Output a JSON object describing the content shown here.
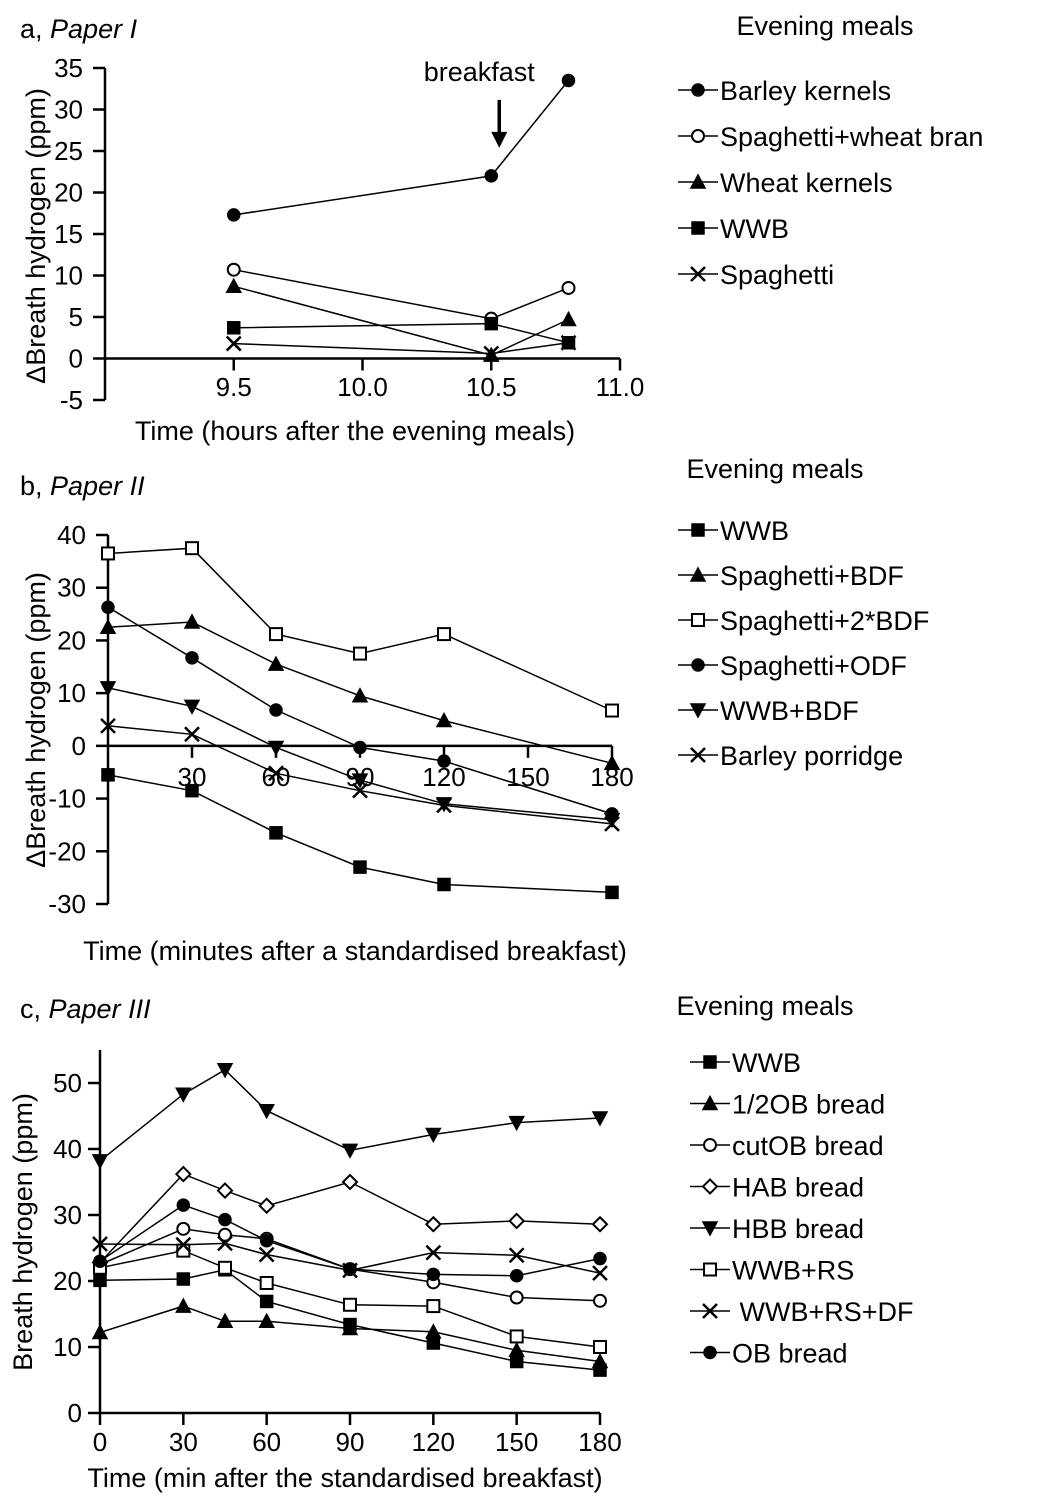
{
  "chart_data": [
    {
      "type": "line",
      "panel_label": "a, ",
      "title": "Paper I",
      "legend_title": "Evening meals",
      "xlabel": "Time (hours after the evening meals)",
      "ylabel": "ΔBreath hydrogen (ppm)",
      "xlim": [
        9.0,
        11.0
      ],
      "ylim": [
        -5,
        35
      ],
      "xticks": [
        9.5,
        10.0,
        10.5,
        11.0
      ],
      "xtick_labels": [
        "9.5",
        "10.0",
        "10.5",
        "11.0"
      ],
      "yticks": [
        -5,
        0,
        5,
        10,
        15,
        20,
        25,
        30,
        35
      ],
      "ytick_labels": [
        "-5",
        "0",
        "5",
        "10",
        "15",
        "20",
        "25",
        "30",
        "35"
      ],
      "x_axis_at_zero": true,
      "annotations": [
        {
          "text": "breakfast",
          "x": 10.5,
          "y": 22
        }
      ],
      "series": [
        {
          "name": "Barley kernels",
          "marker": "circle-filled",
          "x": [
            9.5,
            10.5,
            10.8
          ],
          "y": [
            17.3,
            22.0,
            33.5
          ]
        },
        {
          "name": "Spaghetti+wheat bran",
          "marker": "circle-open",
          "x": [
            9.5,
            10.5,
            10.8
          ],
          "y": [
            10.7,
            4.8,
            8.5
          ]
        },
        {
          "name": "Wheat kernels",
          "marker": "triangle-up-filled",
          "x": [
            9.5,
            10.5,
            10.8
          ],
          "y": [
            8.7,
            0.4,
            4.7
          ]
        },
        {
          "name": "WWB",
          "marker": "square-filled",
          "x": [
            9.5,
            10.5,
            10.8
          ],
          "y": [
            3.7,
            4.2,
            1.9
          ]
        },
        {
          "name": "Spaghetti",
          "marker": "cross",
          "x": [
            9.5,
            10.5,
            10.8
          ],
          "y": [
            1.8,
            0.6,
            1.9
          ]
        }
      ]
    },
    {
      "type": "line",
      "panel_label": "b, ",
      "title": "Paper II",
      "legend_title": "Evening meals",
      "xlabel": "Time (minutes after a standardised breakfast)",
      "ylabel": "ΔBreath hydrogen (ppm)",
      "xlim": [
        0,
        180
      ],
      "ylim": [
        -30,
        40
      ],
      "xticks": [
        30,
        60,
        90,
        120,
        150,
        180
      ],
      "xtick_labels": [
        "30",
        "60",
        "90",
        "120",
        "150",
        "180"
      ],
      "yticks": [
        -30,
        -20,
        -10,
        0,
        10,
        20,
        30,
        40
      ],
      "ytick_labels": [
        "-30",
        "-20",
        "-10",
        "0",
        "10",
        "20",
        "30",
        "40"
      ],
      "x_axis_at_zero": true,
      "series": [
        {
          "name": "WWB",
          "marker": "square-filled",
          "x": [
            0,
            30,
            60,
            90,
            120,
            180
          ],
          "y": [
            -5.5,
            -8.5,
            -16.5,
            -23.0,
            -26.3,
            -27.8
          ]
        },
        {
          "name": "Spaghetti+BDF",
          "marker": "triangle-up-filled",
          "x": [
            0,
            30,
            60,
            90,
            120,
            180
          ],
          "y": [
            22.5,
            23.5,
            15.5,
            9.5,
            4.8,
            -3.3
          ]
        },
        {
          "name": "Spaghetti+2*BDF",
          "marker": "square-open",
          "x": [
            0,
            30,
            60,
            90,
            120,
            180
          ],
          "y": [
            36.5,
            37.5,
            21.2,
            17.5,
            21.2,
            6.7
          ]
        },
        {
          "name": "Spaghetti+ODF",
          "marker": "circle-filled",
          "x": [
            0,
            30,
            60,
            90,
            120,
            180
          ],
          "y": [
            26.3,
            16.7,
            6.8,
            -0.3,
            -2.9,
            -12.9
          ]
        },
        {
          "name": "WWB+BDF",
          "marker": "triangle-down-filled",
          "x": [
            0,
            30,
            60,
            90,
            120,
            180
          ],
          "y": [
            11.0,
            7.5,
            -0.3,
            -6.5,
            -11.0,
            -14.0
          ]
        },
        {
          "name": "Barley porridge",
          "marker": "cross",
          "x": [
            0,
            30,
            60,
            90,
            120,
            180
          ],
          "y": [
            3.8,
            2.2,
            -5.2,
            -8.5,
            -11.3,
            -14.8
          ]
        }
      ]
    },
    {
      "type": "line",
      "panel_label": "c, ",
      "title": "Paper III",
      "legend_title": "Evening meals",
      "xlabel": "Time (min after the standardised breakfast)",
      "ylabel": "Breath hydrogen (ppm)",
      "xlim": [
        0,
        180
      ],
      "ylim": [
        0,
        55
      ],
      "xticks": [
        0,
        30,
        60,
        90,
        120,
        150,
        180
      ],
      "xtick_labels": [
        "0",
        "30",
        "60",
        "90",
        "120",
        "150",
        "180"
      ],
      "yticks": [
        0,
        10,
        20,
        30,
        40,
        50
      ],
      "ytick_labels": [
        "0",
        "10",
        "20",
        "30",
        "40",
        "50"
      ],
      "x_axis_at_zero": true,
      "series": [
        {
          "name": "WWB",
          "marker": "square-filled",
          "x": [
            0,
            30,
            45,
            60,
            90,
            120,
            150,
            180
          ],
          "y": [
            20.1,
            20.3,
            21.7,
            16.9,
            13.4,
            10.6,
            7.8,
            6.5
          ]
        },
        {
          "name": "1/2OB bread",
          "marker": "triangle-up-filled",
          "x": [
            0,
            30,
            45,
            60,
            90,
            120,
            150,
            180
          ],
          "y": [
            12.2,
            16.2,
            13.9,
            13.9,
            12.8,
            12.3,
            9.5,
            7.8
          ]
        },
        {
          "name": "cutOB bread",
          "marker": "circle-open",
          "x": [
            0,
            30,
            45,
            60,
            90,
            120,
            150,
            180
          ],
          "y": [
            22.5,
            27.9,
            27.0,
            26.4,
            21.8,
            19.8,
            17.5,
            17.0
          ]
        },
        {
          "name": "HAB bread",
          "marker": "diamond-open",
          "x": [
            0,
            30,
            45,
            60,
            90,
            120,
            150,
            180
          ],
          "y": [
            22.8,
            36.2,
            33.7,
            31.4,
            35.0,
            28.6,
            29.1,
            28.6
          ]
        },
        {
          "name": "HBB bread",
          "marker": "triangle-down-filled",
          "x": [
            0,
            30,
            45,
            60,
            90,
            120,
            150,
            180
          ],
          "y": [
            38.2,
            48.3,
            52.0,
            45.8,
            39.8,
            42.2,
            44.0,
            44.7
          ]
        },
        {
          "name": "WWB+RS",
          "marker": "square-open",
          "x": [
            0,
            30,
            45,
            60,
            90,
            120,
            150,
            180
          ],
          "y": [
            22.0,
            24.6,
            22.0,
            19.7,
            16.4,
            16.2,
            11.6,
            10.0
          ]
        },
        {
          "name": " WWB+RS+DF",
          "marker": "cross",
          "x": [
            0,
            30,
            45,
            60,
            90,
            120,
            150,
            180
          ],
          "y": [
            25.6,
            25.5,
            25.7,
            24.0,
            21.6,
            24.3,
            23.9,
            21.2
          ]
        },
        {
          "name": "OB bread",
          "marker": "circle-filled",
          "x": [
            0,
            30,
            45,
            60,
            90,
            120,
            150,
            180
          ],
          "y": [
            23.0,
            31.5,
            29.3,
            26.1,
            21.8,
            21.0,
            20.8,
            23.4
          ]
        }
      ]
    }
  ]
}
